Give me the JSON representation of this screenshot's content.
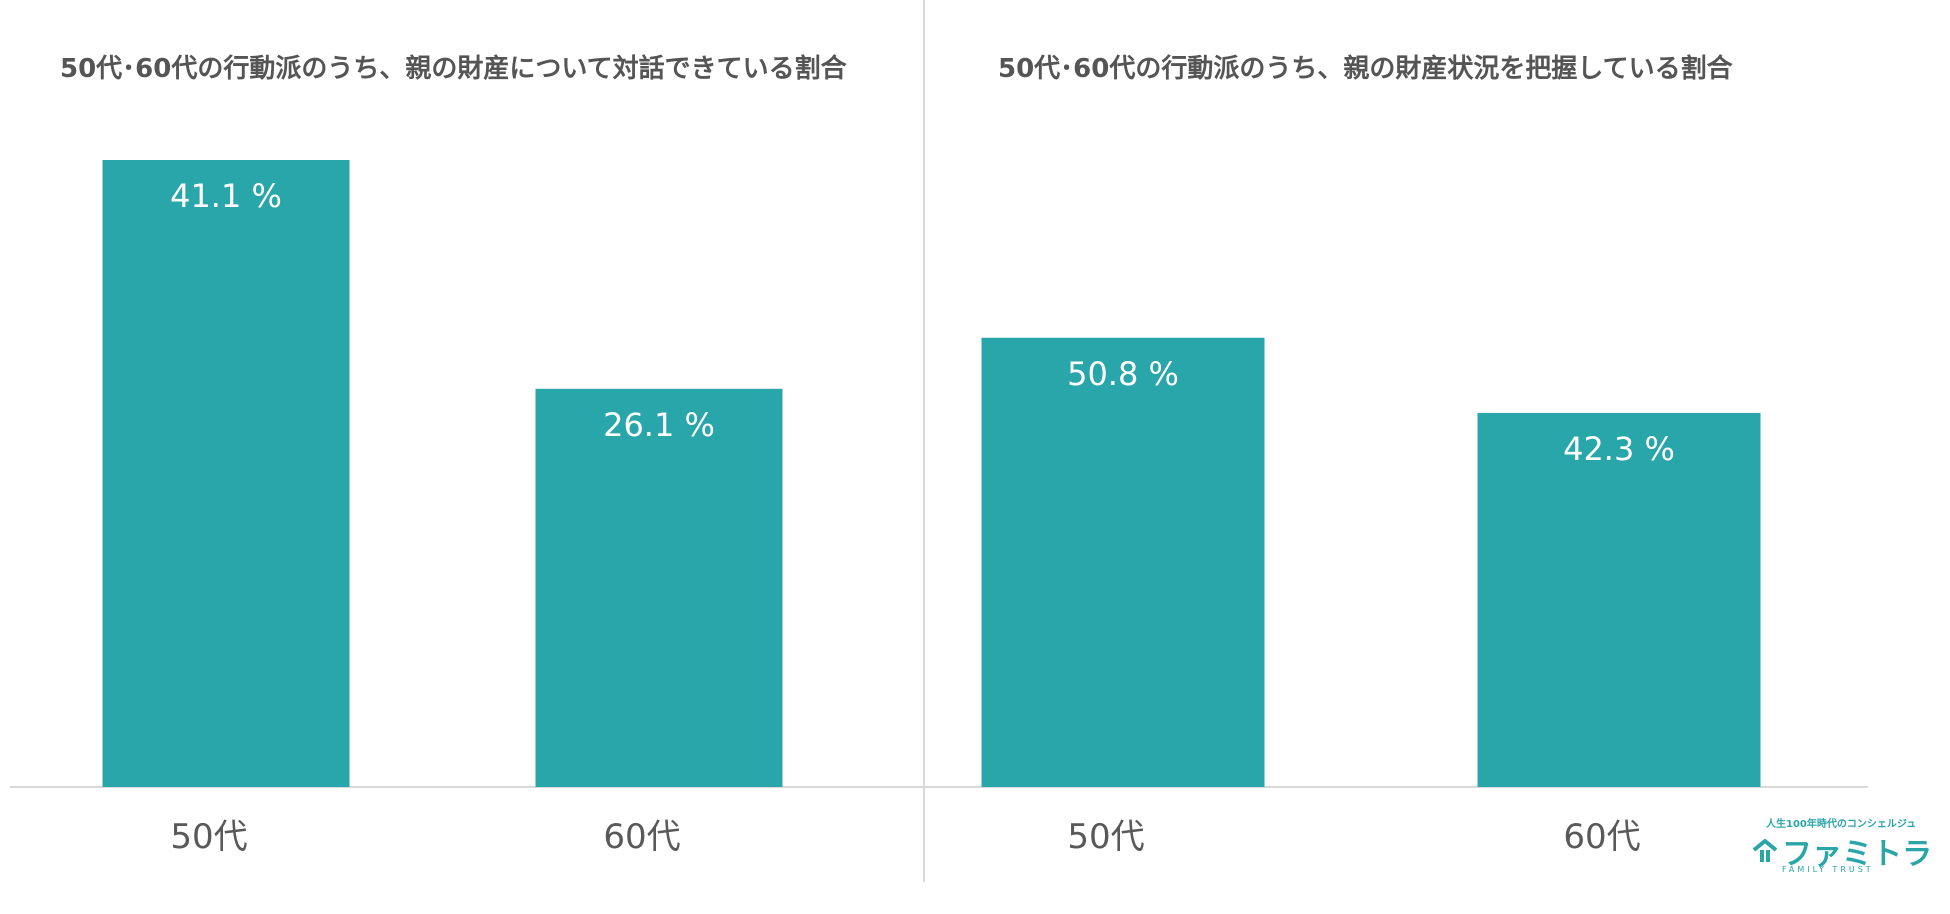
{
  "colors": {
    "bar": "#29a6a9",
    "axis": "#d9d9d9",
    "divider": "#d9d9d9",
    "title": "#555555",
    "category": "#595959",
    "label": "#ffffff"
  },
  "chart_data": [
    {
      "type": "bar",
      "title": "50代･60代の行動派のうち、親の財産について対話できている割合",
      "categories": [
        "50代",
        "60代"
      ],
      "values": [
        41.1,
        26.1
      ],
      "value_labels": [
        "41.1 %",
        "26.1 %"
      ],
      "unit": "%",
      "ylim": [
        0,
        41.1
      ],
      "grid": false,
      "legend": "none"
    },
    {
      "type": "bar",
      "title": "50代･60代の行動派のうち、親の財産状況を把握している割合",
      "categories": [
        "50代",
        "60代"
      ],
      "values": [
        50.8,
        42.3
      ],
      "value_labels": [
        "50.8 %",
        "42.3 %"
      ],
      "unit": "%",
      "ylim": [
        0,
        70.9
      ],
      "grid": false,
      "legend": "none"
    }
  ],
  "logo": {
    "tagline": "人生100年時代のコンシェルジュ",
    "name": "ファミトラ",
    "subtitle": "FAMILY TRUST",
    "icon": "house-icon"
  }
}
